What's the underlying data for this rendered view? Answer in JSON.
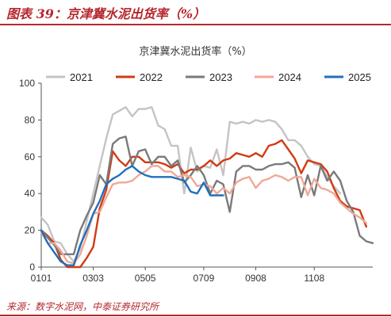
{
  "figure_title": "图表 39：京津冀水泥出货率（%）",
  "source_note": "来源：数字水泥网，中泰证券研究所",
  "chart_data": {
    "type": "line",
    "title": "京津冀水泥出货率（%）",
    "xlabel": "",
    "ylabel": "",
    "ylim": [
      0,
      100
    ],
    "yticks": [
      0,
      20,
      40,
      60,
      80,
      100
    ],
    "x_tick_labels": [
      "0101",
      "0303",
      "0505",
      "0709",
      "0908",
      "1108"
    ],
    "x_tick_weeks": [
      1,
      9,
      17,
      26,
      34,
      43
    ],
    "x_range": [
      1,
      52
    ],
    "legend_position": "top",
    "grid": false,
    "series": [
      {
        "name": "2021",
        "color": "#c4c4c4",
        "points": [
          [
            1,
            27
          ],
          [
            2,
            23
          ],
          [
            3,
            14
          ],
          [
            4,
            13
          ],
          [
            5,
            7
          ],
          [
            6,
            3
          ],
          [
            7,
            10
          ],
          [
            8,
            25
          ],
          [
            9,
            40
          ],
          [
            10,
            55
          ],
          [
            11,
            70
          ],
          [
            12,
            83
          ],
          [
            13,
            85
          ],
          [
            14,
            87
          ],
          [
            15,
            82
          ],
          [
            16,
            86
          ],
          [
            17,
            86
          ],
          [
            18,
            87
          ],
          [
            19,
            77
          ],
          [
            20,
            75
          ],
          [
            21,
            66
          ],
          [
            22,
            66
          ],
          [
            23,
            40
          ],
          [
            24,
            65
          ],
          [
            25,
            52
          ],
          [
            26,
            55
          ],
          [
            27,
            54
          ],
          [
            28,
            64
          ],
          [
            29,
            50
          ],
          [
            30,
            79
          ],
          [
            31,
            78
          ],
          [
            32,
            79
          ],
          [
            33,
            78
          ],
          [
            34,
            80
          ],
          [
            35,
            79
          ],
          [
            36,
            80
          ],
          [
            37,
            79
          ],
          [
            38,
            75
          ],
          [
            39,
            69
          ],
          [
            40,
            69
          ],
          [
            41,
            66
          ],
          [
            42,
            60
          ],
          [
            43,
            56
          ],
          [
            44,
            55
          ],
          [
            45,
            49
          ],
          [
            46,
            44
          ],
          [
            47,
            40
          ]
        ]
      },
      {
        "name": "2022",
        "color": "#d13b14",
        "points": [
          [
            1,
            20
          ],
          [
            2,
            17
          ],
          [
            3,
            13
          ],
          [
            4,
            4
          ],
          [
            5,
            0
          ],
          [
            6,
            0
          ],
          [
            7,
            0
          ],
          [
            8,
            5
          ],
          [
            9,
            11
          ],
          [
            10,
            32
          ],
          [
            11,
            42
          ],
          [
            12,
            63
          ],
          [
            13,
            58
          ],
          [
            14,
            55
          ],
          [
            15,
            60
          ],
          [
            16,
            60
          ],
          [
            17,
            57
          ],
          [
            18,
            57
          ],
          [
            19,
            57
          ],
          [
            20,
            56
          ],
          [
            21,
            54
          ],
          [
            22,
            56
          ],
          [
            23,
            51
          ],
          [
            24,
            53
          ],
          [
            25,
            53
          ],
          [
            26,
            55
          ],
          [
            27,
            58
          ],
          [
            28,
            55
          ],
          [
            29,
            58
          ],
          [
            30,
            59
          ],
          [
            31,
            62
          ],
          [
            32,
            61
          ],
          [
            33,
            60
          ],
          [
            34,
            62
          ],
          [
            35,
            60
          ],
          [
            36,
            66
          ],
          [
            37,
            67
          ],
          [
            38,
            69
          ],
          [
            39,
            64
          ],
          [
            40,
            59
          ],
          [
            41,
            51
          ],
          [
            42,
            58
          ],
          [
            43,
            57
          ],
          [
            44,
            56
          ],
          [
            45,
            52
          ],
          [
            46,
            43
          ],
          [
            47,
            36
          ],
          [
            48,
            33
          ],
          [
            49,
            32
          ],
          [
            50,
            31
          ],
          [
            51,
            22
          ]
        ]
      },
      {
        "name": "2023",
        "color": "#7a7a7a",
        "points": [
          [
            1,
            20
          ],
          [
            2,
            16
          ],
          [
            3,
            12
          ],
          [
            4,
            7
          ],
          [
            5,
            7
          ],
          [
            6,
            7
          ],
          [
            7,
            20
          ],
          [
            8,
            28
          ],
          [
            9,
            35
          ],
          [
            10,
            50
          ],
          [
            11,
            45
          ],
          [
            12,
            67
          ],
          [
            13,
            70
          ],
          [
            14,
            71
          ],
          [
            15,
            55
          ],
          [
            16,
            63
          ],
          [
            17,
            64
          ],
          [
            18,
            56
          ],
          [
            19,
            60
          ],
          [
            20,
            60
          ],
          [
            21,
            55
          ],
          [
            22,
            58
          ],
          [
            23,
            46
          ],
          [
            24,
            50
          ],
          [
            25,
            55
          ],
          [
            26,
            50
          ],
          [
            27,
            40
          ],
          [
            28,
            47
          ],
          [
            29,
            45
          ],
          [
            30,
            30
          ],
          [
            31,
            52
          ],
          [
            32,
            55
          ],
          [
            33,
            55
          ],
          [
            34,
            53
          ],
          [
            35,
            53
          ],
          [
            36,
            55
          ],
          [
            37,
            56
          ],
          [
            38,
            56
          ],
          [
            39,
            57
          ],
          [
            40,
            54
          ],
          [
            41,
            38
          ],
          [
            42,
            50
          ],
          [
            43,
            39
          ],
          [
            44,
            55
          ],
          [
            45,
            47
          ],
          [
            46,
            52
          ],
          [
            47,
            47
          ],
          [
            48,
            36
          ],
          [
            49,
            30
          ],
          [
            50,
            17
          ],
          [
            51,
            14
          ],
          [
            52,
            13
          ]
        ]
      },
      {
        "name": "2024",
        "color": "#f0a896",
        "points": [
          [
            1,
            19
          ],
          [
            2,
            13
          ],
          [
            3,
            13
          ],
          [
            4,
            9
          ],
          [
            5,
            3
          ],
          [
            6,
            2
          ],
          [
            7,
            7
          ],
          [
            8,
            17
          ],
          [
            9,
            29
          ],
          [
            10,
            30
          ],
          [
            11,
            38
          ],
          [
            12,
            45
          ],
          [
            13,
            46
          ],
          [
            14,
            46
          ],
          [
            15,
            47
          ],
          [
            16,
            50
          ],
          [
            17,
            52
          ],
          [
            18,
            55
          ],
          [
            19,
            55
          ],
          [
            20,
            52
          ],
          [
            21,
            52
          ],
          [
            22,
            49
          ],
          [
            23,
            50
          ],
          [
            24,
            49
          ],
          [
            25,
            44
          ],
          [
            26,
            45
          ],
          [
            27,
            44
          ],
          [
            28,
            40
          ],
          [
            29,
            43
          ],
          [
            30,
            40
          ],
          [
            31,
            46
          ],
          [
            32,
            48
          ],
          [
            33,
            49
          ],
          [
            34,
            43
          ],
          [
            35,
            47
          ],
          [
            36,
            48
          ],
          [
            37,
            50
          ],
          [
            38,
            49
          ],
          [
            39,
            47
          ],
          [
            40,
            49
          ],
          [
            41,
            49
          ],
          [
            42,
            39
          ],
          [
            43,
            48
          ],
          [
            44,
            43
          ],
          [
            45,
            42
          ],
          [
            46,
            40
          ],
          [
            47,
            35
          ],
          [
            48,
            32
          ],
          [
            49,
            29
          ],
          [
            50,
            27
          ],
          [
            51,
            24
          ]
        ]
      },
      {
        "name": "2025",
        "color": "#1f6fbb",
        "points": [
          [
            1,
            20
          ],
          [
            2,
            13
          ],
          [
            3,
            8
          ],
          [
            4,
            3
          ],
          [
            5,
            1
          ],
          [
            6,
            1
          ],
          [
            7,
            12
          ],
          [
            8,
            20
          ],
          [
            9,
            29
          ],
          [
            10,
            36
          ],
          [
            11,
            45
          ],
          [
            12,
            48
          ],
          [
            13,
            50
          ],
          [
            14,
            53
          ],
          [
            15,
            55
          ],
          [
            16,
            52
          ],
          [
            17,
            50
          ],
          [
            18,
            49
          ],
          [
            19,
            49
          ],
          [
            20,
            49
          ],
          [
            21,
            49
          ],
          [
            22,
            48
          ],
          [
            23,
            47
          ],
          [
            24,
            41
          ],
          [
            25,
            40
          ],
          [
            26,
            46
          ],
          [
            27,
            39
          ],
          [
            28,
            39
          ],
          [
            29,
            39
          ]
        ]
      }
    ]
  }
}
